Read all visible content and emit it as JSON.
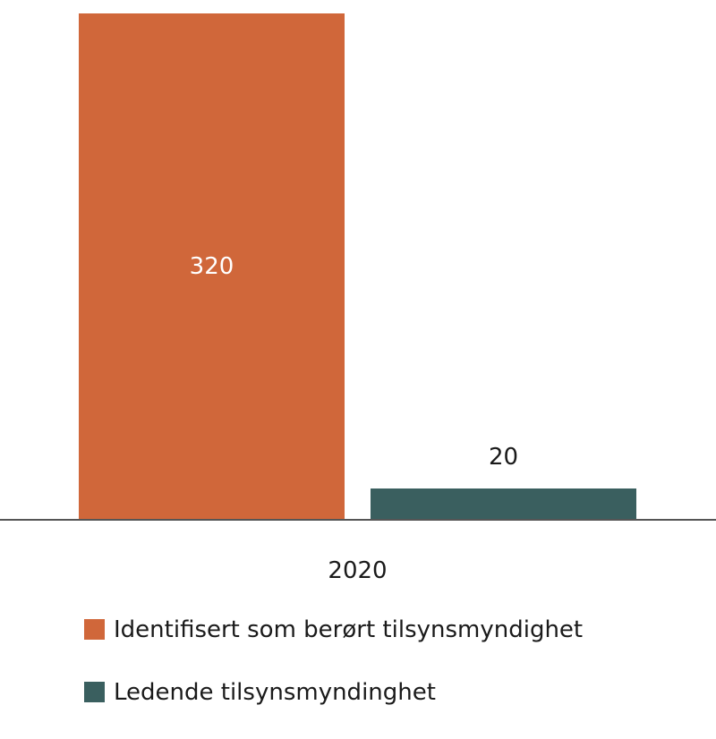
{
  "chart_data": {
    "type": "bar",
    "title": "",
    "xlabel": "",
    "ylabel": "",
    "categories": [
      "2020"
    ],
    "series": [
      {
        "name": "Identifisert som berørt tilsynsmyndighet",
        "values": [
          320
        ],
        "color": "#D0673A"
      },
      {
        "name": "Ledende tilsynsmyndinghet",
        "values": [
          20
        ],
        "color": "#3A5F5F"
      }
    ],
    "ylim": [
      0,
      320
    ],
    "grid": false,
    "legend_position": "bottom",
    "data_labels": [
      "320",
      "20"
    ]
  },
  "bars": [
    {
      "label": "320",
      "value": 320,
      "color": "#D0673A"
    },
    {
      "label": "20",
      "value": 20,
      "color": "#3A5F5F"
    }
  ],
  "category_label": "2020",
  "legend": [
    {
      "label": "Identifisert som berørt tilsynsmyndighet",
      "color": "#D0673A"
    },
    {
      "label": "Ledende tilsynsmyndinghet",
      "color": "#3A5F5F"
    }
  ]
}
